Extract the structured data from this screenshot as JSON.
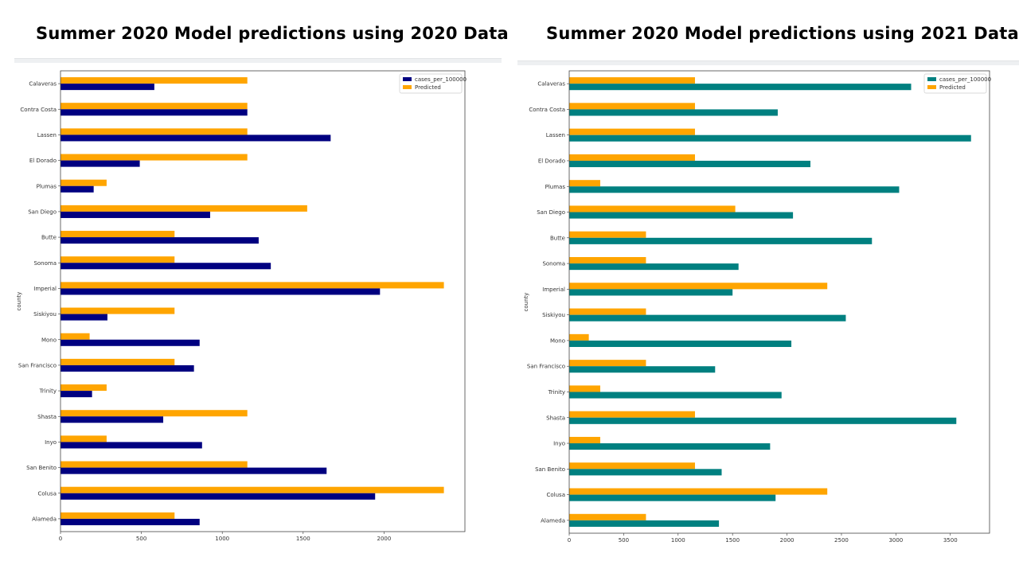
{
  "slide": {
    "left_title": "Summer 2020 Model predictions using 2020 Data",
    "right_title": "Summer 2020 Model predictions using 2021 Data"
  },
  "chart_data": [
    {
      "type": "bar",
      "orientation": "horizontal",
      "categories": [
        "Calaveras",
        "Contra Costa",
        "Lassen",
        "El Dorado",
        "Plumas",
        "San Diego",
        "Butte",
        "Sonoma",
        "Imperial",
        "Siskiyou",
        "Mono",
        "San Francisco",
        "Trinity",
        "Shasta",
        "Inyo",
        "San Benito",
        "Colusa",
        "Alameda"
      ],
      "series": [
        {
          "name": "cases_per_100000",
          "color": "#000080",
          "values": [
            580,
            1155,
            1670,
            490,
            205,
            925,
            1225,
            1300,
            1975,
            290,
            860,
            825,
            195,
            635,
            875,
            1645,
            1945,
            860
          ]
        },
        {
          "name": "Predicted",
          "color": "#ffa500",
          "values": [
            1155,
            1155,
            1155,
            1155,
            285,
            1525,
            705,
            705,
            2370,
            705,
            180,
            705,
            285,
            1155,
            285,
            1155,
            2370,
            705
          ]
        }
      ],
      "ylabel": "county",
      "xticks": [
        0,
        500,
        1000,
        1500,
        2000
      ],
      "xlim": [
        0,
        2500
      ],
      "legend": "top-right",
      "grid": false
    },
    {
      "type": "bar",
      "orientation": "horizontal",
      "categories": [
        "Calaveras",
        "Contra Costa",
        "Lassen",
        "El Dorado",
        "Plumas",
        "San Diego",
        "Butte",
        "Sonoma",
        "Imperial",
        "Siskiyou",
        "Mono",
        "San Francisco",
        "Trinity",
        "Shasta",
        "Inyo",
        "San Benito",
        "Colusa",
        "Alameda"
      ],
      "series": [
        {
          "name": "cases_per_100000",
          "color": "#008080",
          "values": [
            3140,
            1915,
            3690,
            2215,
            3030,
            2055,
            2780,
            1555,
            1500,
            2540,
            2040,
            1340,
            1950,
            3555,
            1845,
            1400,
            1895,
            1375
          ]
        },
        {
          "name": "Predicted",
          "color": "#ffa500",
          "values": [
            1155,
            1155,
            1155,
            1155,
            285,
            1525,
            705,
            705,
            2370,
            705,
            180,
            705,
            285,
            1155,
            285,
            1155,
            2370,
            705
          ]
        }
      ],
      "ylabel": "county",
      "xticks": [
        0,
        500,
        1000,
        1500,
        2000,
        2500,
        3000,
        3500
      ],
      "xlim": [
        0,
        3860
      ],
      "legend": "top-right",
      "grid": false
    }
  ]
}
